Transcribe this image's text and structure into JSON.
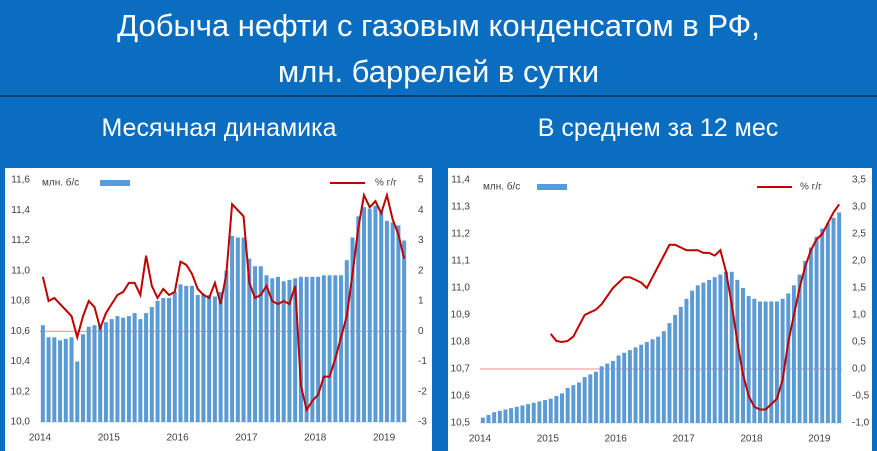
{
  "title_lines": [
    "Добыча нефти с газовым конденсатом в РФ,",
    "млн. баррелей в сутки"
  ],
  "chart_data": [
    {
      "type": "combo",
      "title": "Месячная динамика",
      "categories": [
        "2014",
        null,
        null,
        null,
        null,
        null,
        null,
        null,
        null,
        null,
        null,
        null,
        "2015",
        null,
        null,
        null,
        null,
        null,
        null,
        null,
        null,
        null,
        null,
        null,
        "2016",
        null,
        null,
        null,
        null,
        null,
        null,
        null,
        null,
        null,
        null,
        null,
        "2017",
        null,
        null,
        null,
        null,
        null,
        null,
        null,
        null,
        null,
        null,
        null,
        "2018",
        null,
        null,
        null,
        null,
        null,
        null,
        null,
        null,
        null,
        null,
        null,
        "2019",
        null,
        null,
        null
      ],
      "series": [
        {
          "name": "млн. б/с",
          "type": "bar",
          "color": "#5b9bd5",
          "values": [
            10.64,
            10.56,
            10.56,
            10.54,
            10.55,
            10.56,
            10.4,
            10.58,
            10.63,
            10.64,
            10.64,
            10.66,
            10.68,
            10.7,
            10.69,
            10.7,
            10.72,
            10.68,
            10.72,
            10.76,
            10.8,
            10.82,
            10.82,
            10.86,
            10.91,
            10.9,
            10.9,
            10.84,
            10.85,
            10.84,
            10.83,
            10.86,
            11.0,
            11.23,
            11.22,
            11.22,
            11.08,
            11.03,
            11.03,
            10.97,
            10.95,
            10.96,
            10.93,
            10.94,
            10.95,
            10.96,
            10.96,
            10.96,
            10.96,
            10.97,
            10.97,
            10.97,
            10.97,
            11.07,
            11.22,
            11.36,
            11.42,
            11.41,
            11.43,
            11.4,
            11.33,
            11.32,
            11.3,
            11.2
          ]
        },
        {
          "name": "% г/г",
          "type": "line",
          "axis": "y2",
          "color": "#c00000",
          "values": [
            1.8,
            1.0,
            1.1,
            0.9,
            0.7,
            0.5,
            -0.2,
            0.5,
            1.0,
            0.8,
            0.1,
            0.6,
            0.9,
            1.2,
            1.3,
            1.6,
            1.6,
            1.2,
            2.5,
            1.5,
            1.1,
            1.4,
            1.2,
            1.3,
            2.3,
            2.2,
            1.9,
            1.4,
            1.2,
            1.1,
            1.6,
            0.9,
            1.9,
            4.2,
            4.0,
            3.8,
            1.6,
            1.1,
            1.2,
            1.5,
            1.0,
            0.9,
            1.0,
            0.9,
            1.5,
            -1.8,
            -2.6,
            -2.3,
            -2.1,
            -1.5,
            -1.5,
            -0.9,
            -0.2,
            0.5,
            1.9,
            3.4,
            4.5,
            4.1,
            4.3,
            3.9,
            4.5,
            3.7,
            3.2,
            2.4
          ]
        }
      ],
      "ylim": [
        10.0,
        11.6
      ],
      "yticks": [
        {
          "value": 10.0,
          "label": "10,0"
        },
        {
          "value": 10.2,
          "label": "10,2"
        },
        {
          "value": 10.4,
          "label": "10,4"
        },
        {
          "value": 10.6,
          "label": "10,6"
        },
        {
          "value": 10.8,
          "label": "10,8"
        },
        {
          "value": 11.0,
          "label": "11,0"
        },
        {
          "value": 11.2,
          "label": "11,2"
        },
        {
          "value": 11.4,
          "label": "11,4"
        },
        {
          "value": 11.6,
          "label": "11,6"
        }
      ],
      "y2lim": [
        -3,
        5
      ],
      "y2ticks": [
        -3,
        -2,
        -1,
        0,
        1,
        2,
        3,
        4,
        5
      ],
      "grid": false
    },
    {
      "type": "combo",
      "title": "В среднем за 12 мес",
      "categories": [
        "2014",
        null,
        null,
        null,
        null,
        null,
        null,
        null,
        null,
        null,
        null,
        null,
        "2015",
        null,
        null,
        null,
        null,
        null,
        null,
        null,
        null,
        null,
        null,
        null,
        "2016",
        null,
        null,
        null,
        null,
        null,
        null,
        null,
        null,
        null,
        null,
        null,
        "2017",
        null,
        null,
        null,
        null,
        null,
        null,
        null,
        null,
        null,
        null,
        null,
        "2018",
        null,
        null,
        null,
        null,
        null,
        null,
        null,
        null,
        null,
        null,
        null,
        "2019",
        null,
        null,
        null
      ],
      "series": [
        {
          "name": "млн. б/с",
          "type": "bar",
          "color": "#5b9bd5",
          "values": [
            10.52,
            10.53,
            10.54,
            10.545,
            10.55,
            10.555,
            10.56,
            10.565,
            10.57,
            10.575,
            10.58,
            10.585,
            10.59,
            10.6,
            10.61,
            10.63,
            10.64,
            10.65,
            10.67,
            10.68,
            10.69,
            10.71,
            10.72,
            10.73,
            10.75,
            10.76,
            10.77,
            10.78,
            10.79,
            10.8,
            10.81,
            10.82,
            10.84,
            10.87,
            10.9,
            10.93,
            10.96,
            10.99,
            11.01,
            11.02,
            11.03,
            11.04,
            11.05,
            11.06,
            11.06,
            11.03,
            11.0,
            10.97,
            10.96,
            10.95,
            10.95,
            10.95,
            10.95,
            10.96,
            10.98,
            11.01,
            11.05,
            11.1,
            11.15,
            11.19,
            11.22,
            11.24,
            11.26,
            11.28
          ]
        },
        {
          "name": "% г/г",
          "type": "line",
          "axis": "y2",
          "color": "#c00000",
          "values": [
            null,
            null,
            null,
            null,
            null,
            null,
            null,
            null,
            null,
            null,
            null,
            null,
            0.65,
            0.52,
            0.5,
            0.52,
            0.6,
            0.8,
            1.0,
            1.05,
            1.1,
            1.2,
            1.35,
            1.5,
            1.6,
            1.7,
            1.7,
            1.65,
            1.6,
            1.5,
            1.7,
            1.9,
            2.1,
            2.3,
            2.3,
            2.25,
            2.2,
            2.2,
            2.2,
            2.15,
            2.15,
            2.1,
            2.2,
            1.8,
            1.2,
            0.5,
            -0.1,
            -0.5,
            -0.7,
            -0.75,
            -0.75,
            -0.65,
            -0.55,
            -0.2,
            0.5,
            1.0,
            1.5,
            1.9,
            2.2,
            2.4,
            2.5,
            2.7,
            2.9,
            3.05
          ]
        }
      ],
      "ylim": [
        10.5,
        11.4
      ],
      "yticks": [
        {
          "value": 10.5,
          "label": "10,5"
        },
        {
          "value": 10.6,
          "label": "10,6"
        },
        {
          "value": 10.7,
          "label": "10,7"
        },
        {
          "value": 10.8,
          "label": "10,8"
        },
        {
          "value": 10.9,
          "label": "10,9"
        },
        {
          "value": 11.0,
          "label": "11,0"
        },
        {
          "value": 11.1,
          "label": "11,1"
        },
        {
          "value": 11.2,
          "label": "11,2"
        },
        {
          "value": 11.3,
          "label": "11,3"
        },
        {
          "value": 11.4,
          "label": "11,4"
        }
      ],
      "y2lim": [
        -1.0,
        3.5
      ],
      "y2ticks": [
        {
          "value": -1.0,
          "label": "-1,0"
        },
        {
          "value": -0.5,
          "label": "-0,5"
        },
        {
          "value": 0.0,
          "label": "0,0"
        },
        {
          "value": 0.5,
          "label": "0,5"
        },
        {
          "value": 1.0,
          "label": "1,0"
        },
        {
          "value": 1.5,
          "label": "1,5"
        },
        {
          "value": 2.0,
          "label": "2,0"
        },
        {
          "value": 2.5,
          "label": "2,5"
        },
        {
          "value": 3.0,
          "label": "3,0"
        },
        {
          "value": 3.5,
          "label": "3,5"
        }
      ],
      "grid": false
    }
  ]
}
